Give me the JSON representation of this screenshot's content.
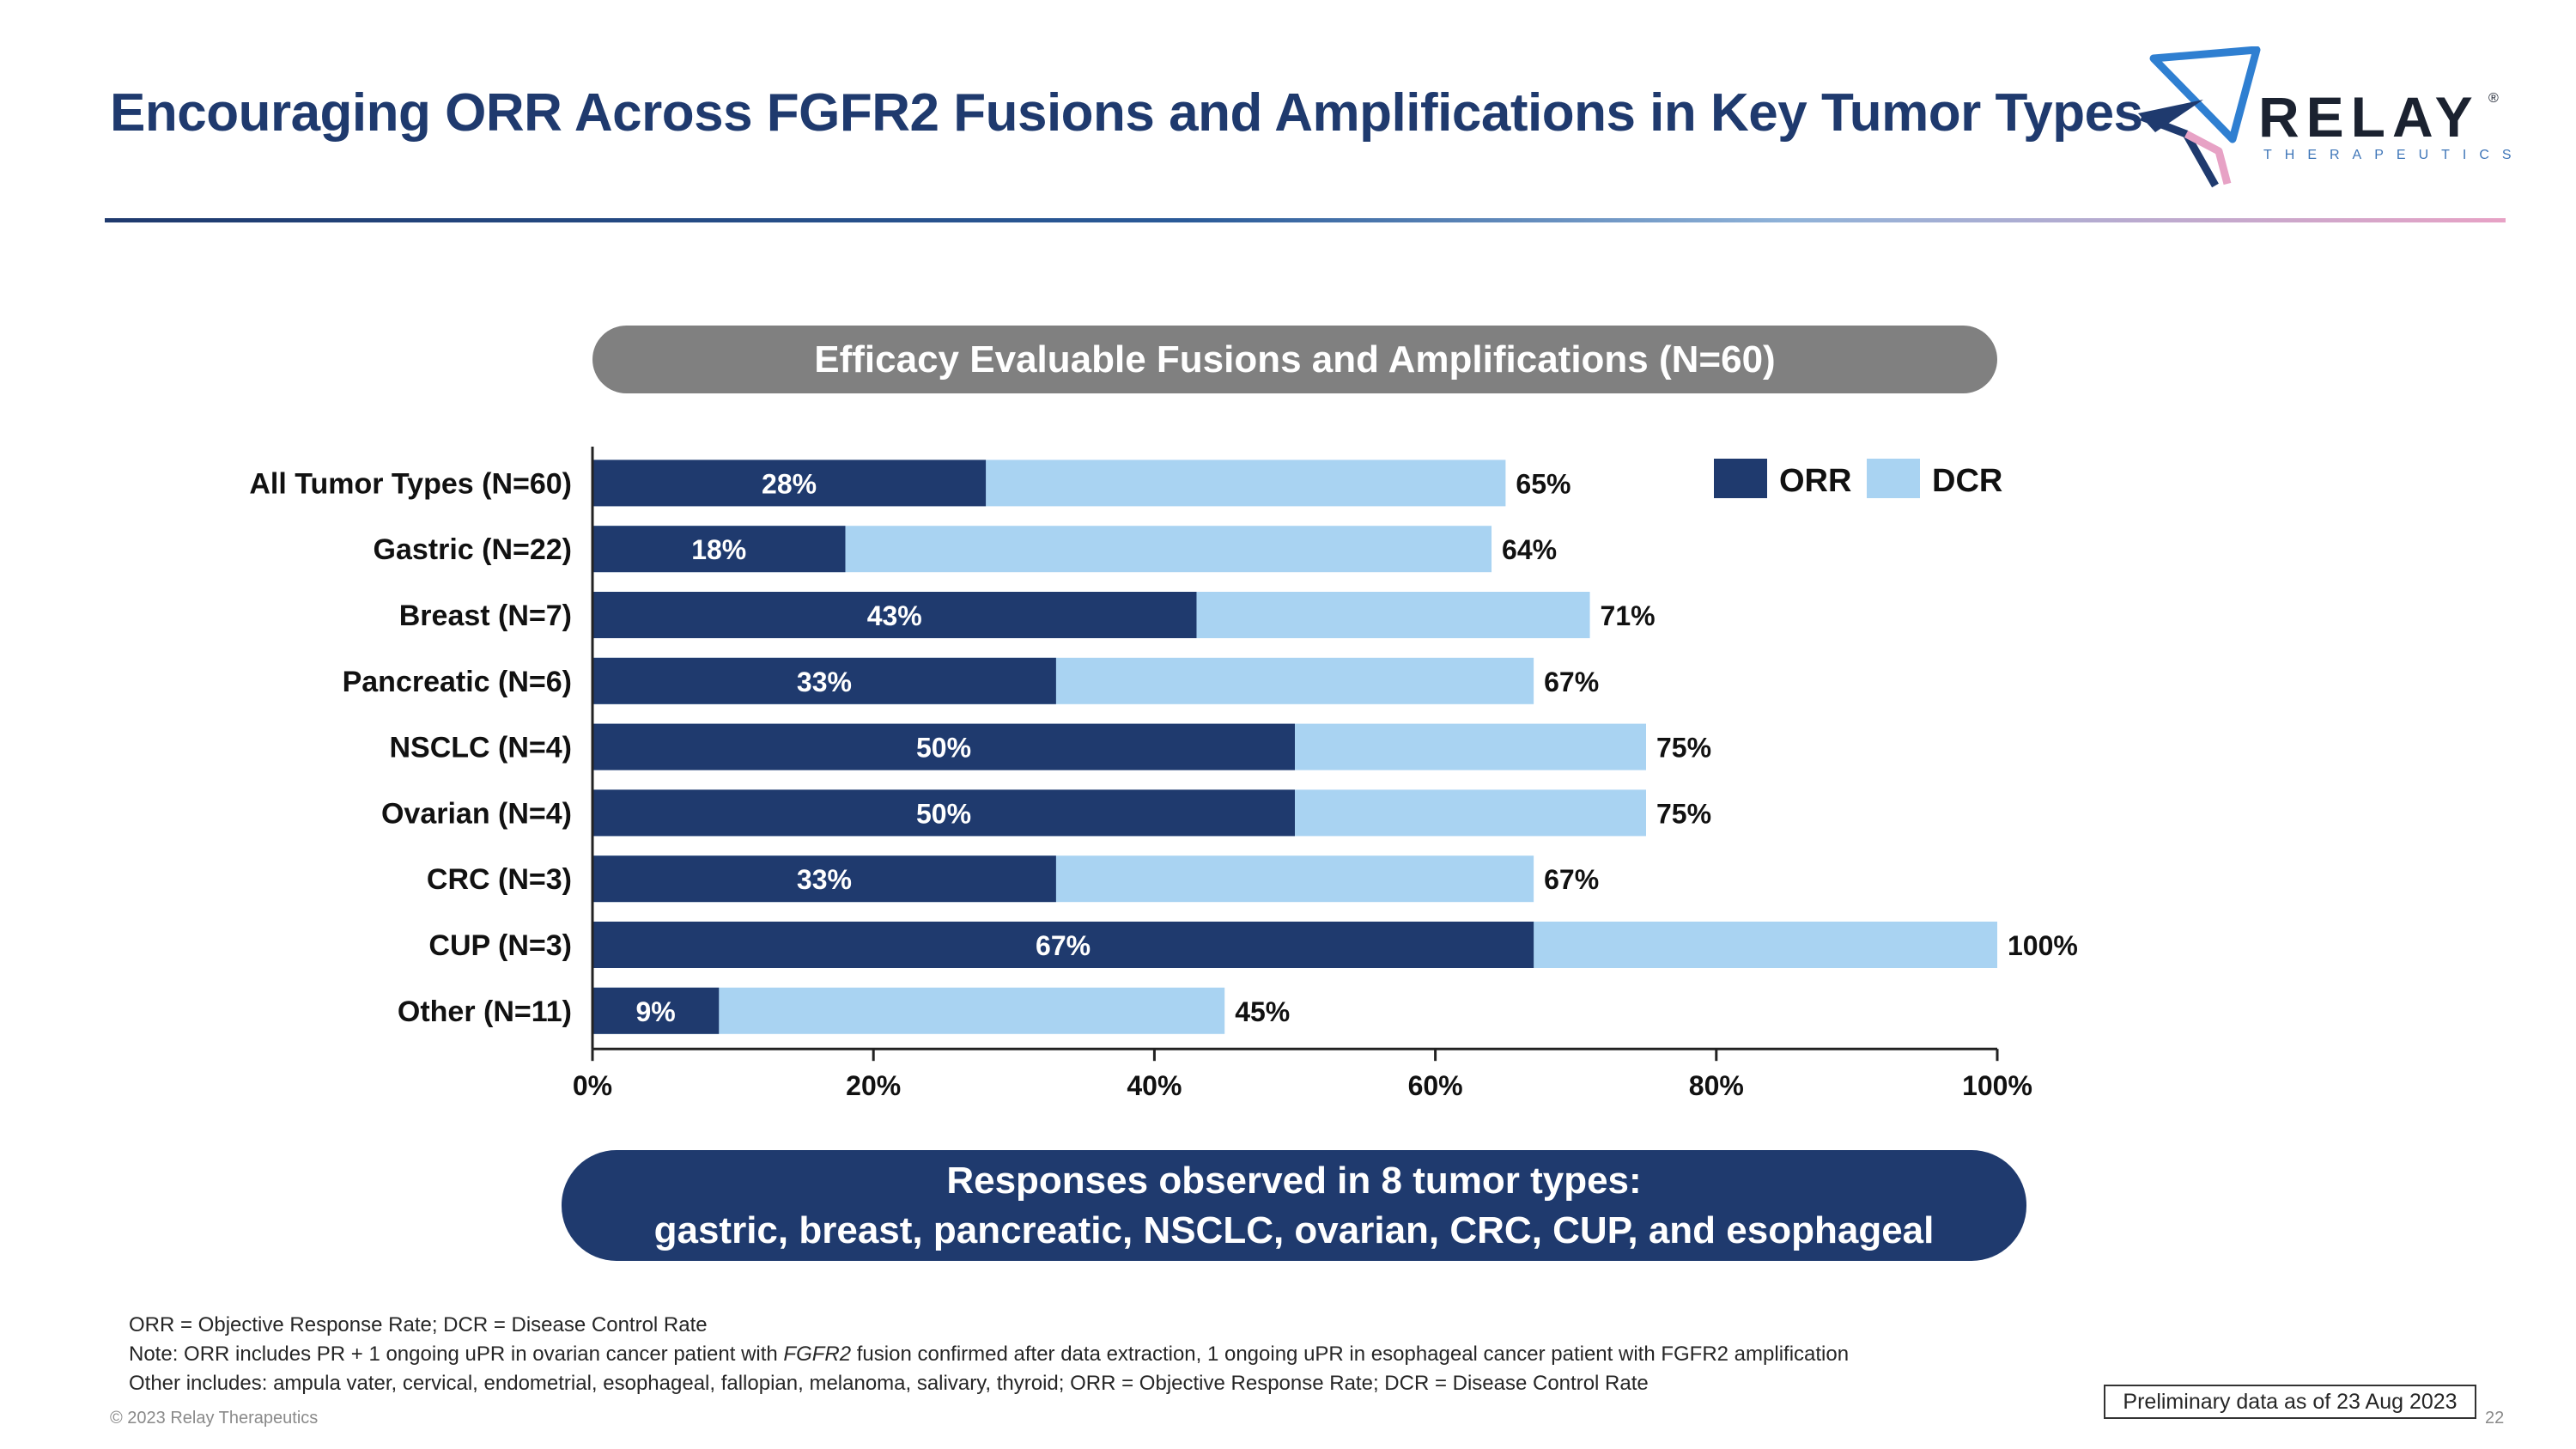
{
  "slide": {
    "title": "Encouraging ORR Across FGFR2 Fusions and Amplifications in Key Tumor Types",
    "panel_title": "Efficacy Evaluable Fusions and Amplifications (N=60)",
    "callout_line1": "Responses observed in 8 tumor types:",
    "callout_line2": "gastric, breast, pancreatic, NSCLC, ovarian, CRC, CUP, and esophageal",
    "footnote1": "ORR = Objective Response Rate; DCR = Disease Control Rate",
    "footnote2_pre": "Note: ORR includes PR + 1 ongoing uPR in ovarian cancer patient with ",
    "footnote2_gene": "FGFR2",
    "footnote2_post": " fusion confirmed after data extraction, 1 ongoing uPR in esophageal cancer patient with FGFR2 amplification",
    "footnote3": "Other includes: ampula vater, cervical, endometrial, esophageal, fallopian, melanoma, salivary, thyroid; ORR = Objective Response Rate; DCR = Disease Control Rate",
    "copyright": "© 2023 Relay Therapeutics",
    "prelim_note": "Preliminary data as of 23 Aug 2023",
    "page_number": "22"
  },
  "logo": {
    "wordmark": "RELAY",
    "registered": "®",
    "subtitle": "THERAPEUTICS"
  },
  "colors": {
    "title": "#1f3a6e",
    "orr": "#1f3a6e",
    "dcr": "#a9d3f2",
    "pill_gray": "#808080"
  },
  "chart_data": {
    "type": "bar",
    "orientation": "horizontal",
    "categories": [
      "All Tumor Types (N=60)",
      "Gastric (N=22)",
      "Breast (N=7)",
      "Pancreatic (N=6)",
      "NSCLC (N=4)",
      "Ovarian (N=4)",
      "CRC (N=3)",
      "CUP (N=3)",
      "Other (N=11)"
    ],
    "series": [
      {
        "name": "ORR",
        "values": [
          28,
          18,
          43,
          33,
          50,
          50,
          33,
          67,
          9
        ]
      },
      {
        "name": "DCR",
        "values": [
          65,
          64,
          71,
          67,
          75,
          75,
          67,
          100,
          45
        ]
      }
    ],
    "data_labels_orr": [
      "28%",
      "18%",
      "43%",
      "33%",
      "50%",
      "50%",
      "33%",
      "67%",
      "9%"
    ],
    "data_labels_dcr": [
      "65%",
      "64%",
      "71%",
      "67%",
      "75%",
      "75%",
      "67%",
      "100%",
      "45%"
    ],
    "xlim": [
      0,
      100
    ],
    "xticks": [
      0,
      20,
      40,
      60,
      80,
      100
    ],
    "xtick_labels": [
      "0%",
      "20%",
      "40%",
      "60%",
      "80%",
      "100%"
    ],
    "legend": [
      "ORR",
      "DCR"
    ],
    "legend_position": "top-right",
    "grid": false,
    "overlay": true
  }
}
